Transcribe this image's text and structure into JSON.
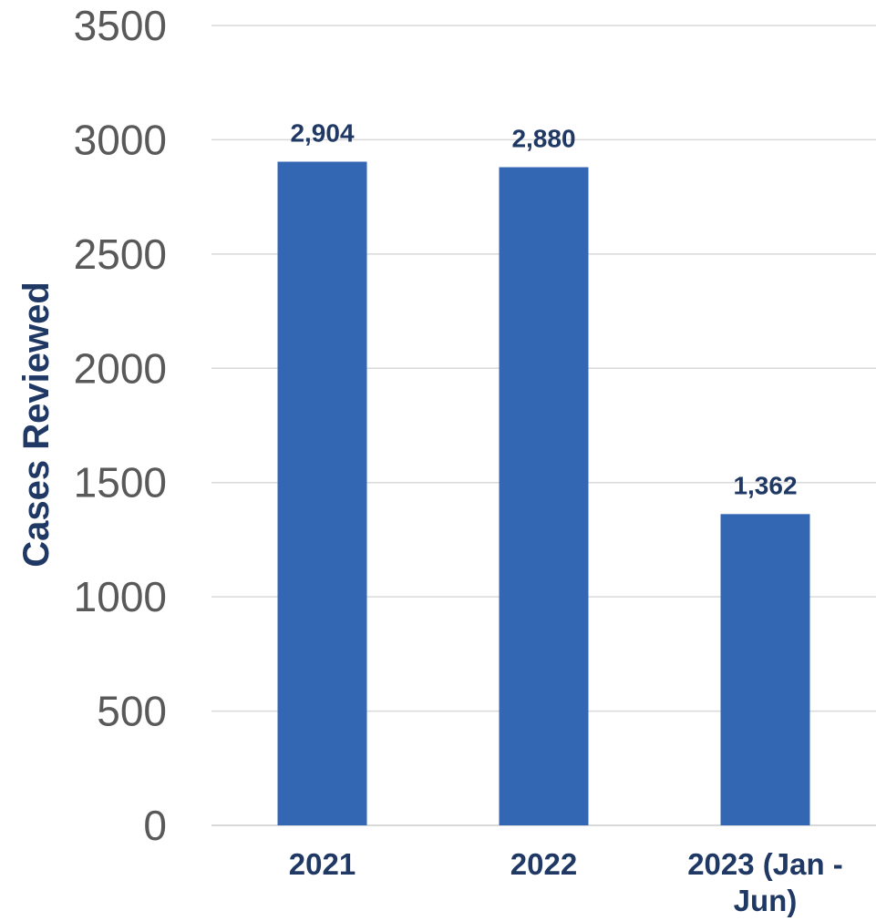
{
  "chart_data": {
    "type": "bar",
    "categories": [
      "2021",
      "2022",
      "2023 (Jan - Jun)"
    ],
    "category_lines": [
      [
        "2021"
      ],
      [
        "2022"
      ],
      [
        "2023 (Jan -",
        "Jun)"
      ]
    ],
    "values": [
      2904,
      2880,
      1362
    ],
    "value_labels": [
      "2,904",
      "2,880",
      "1,362"
    ],
    "title": "",
    "xlabel": "",
    "ylabel": "Cases Reviewed",
    "ylim": [
      0,
      3500
    ],
    "yticks": [
      "0",
      "500",
      "1000",
      "1500",
      "2000",
      "2500",
      "3000",
      "3500"
    ],
    "grid": true,
    "legend": "none",
    "bar_color": "#3366b3",
    "label_color": "#1f3864",
    "tick_color": "#595959"
  }
}
